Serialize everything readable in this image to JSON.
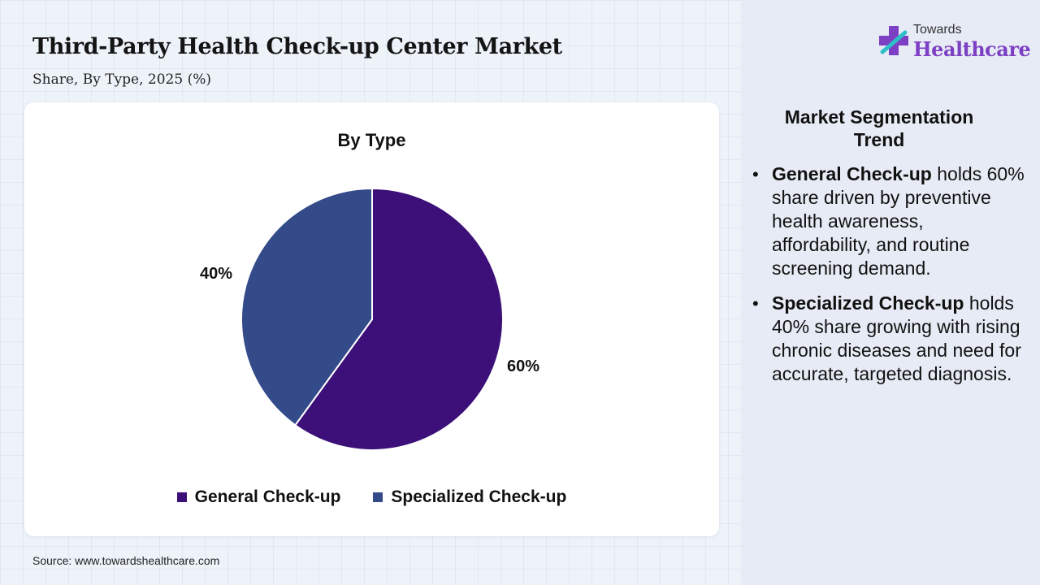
{
  "header": {
    "title": "Third-Party Health Check-up Center Market",
    "subtitle": "Share, By Type, 2025 (%)"
  },
  "logo": {
    "top_text": "Towards",
    "main_text": "Healthcare"
  },
  "chart_data": {
    "type": "pie",
    "title": "By Type",
    "categories": [
      "General Check-up",
      "Specialized Check-up"
    ],
    "values": [
      60,
      40
    ],
    "labels": [
      "60%",
      "40%"
    ],
    "colors": [
      "#3c1078",
      "#344b8a"
    ],
    "legend_position": "bottom"
  },
  "panel": {
    "heading": "Market Segmentation Trend",
    "bullets": [
      {
        "bold": "General Check-up",
        "text": " holds 60% share driven by preventive health awareness, affordability, and routine screening demand."
      },
      {
        "bold": "Specialized Check-up",
        "text": " holds 40% share growing with rising chronic diseases and need for accurate, targeted diagnosis."
      }
    ]
  },
  "source": "Source: www.towardshealthcare.com"
}
